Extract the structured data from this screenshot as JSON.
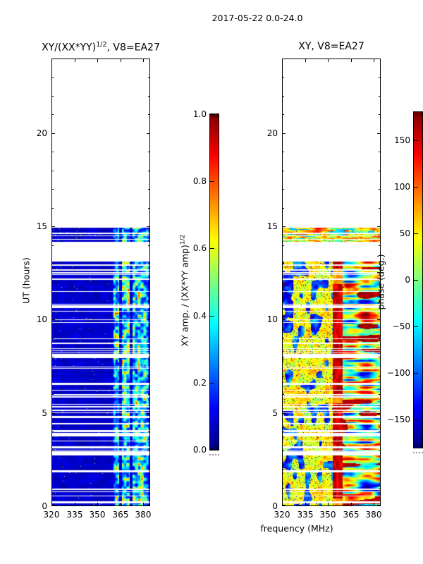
{
  "figure": {
    "title": "2017-05-22 0.0-24.0",
    "background": "#ffffff",
    "frame_color": "#000000"
  },
  "chart_data": [
    {
      "type": "heatmap",
      "panel": "left",
      "title_pre": "XY/(XX*YY)",
      "title_sup": "1/2",
      "title_post": ", V8=EA27",
      "ylabel": "UT (hours)",
      "xlabel": "frequency (MHz)",
      "xlim": [
        320,
        384.6
      ],
      "ylim": [
        0,
        24
      ],
      "xticks": [
        "320",
        "335",
        "350",
        "365",
        "380"
      ],
      "xtick_values": [
        320,
        335,
        350,
        365,
        380
      ],
      "yticks": [
        "0",
        "5",
        "10",
        "15",
        "20"
      ],
      "ytick_values": [
        0,
        5,
        10,
        15,
        20
      ],
      "grid": false,
      "colormap": "jet",
      "colorbar": {
        "label_pre": "XY amp. / (XX*YY amp)",
        "label_sup": "1/2",
        "range": [
          0.0,
          1.0
        ],
        "tick_labels": [
          "1.0",
          "0.8",
          "0.6",
          "0.4",
          "0.2",
          "0.0"
        ],
        "tick_values": [
          1.0,
          0.8,
          0.6,
          0.4,
          0.2,
          0.0
        ]
      },
      "data_summary": {
        "time_blocks_hours": [
          [
            0,
            13.1
          ],
          [
            14.17,
            14.93
          ]
        ],
        "blank_hours": [
          [
            13.1,
            14.17
          ],
          [
            14.93,
            24
          ]
        ],
        "background_amplitude": 0.05,
        "enhanced_band_mhz": [
          359.5,
          383
        ],
        "enhanced_amplitude_range": [
          0.2,
          0.9
        ],
        "notch_lines_mhz": [
          364.9,
          371.9
        ],
        "row_dropout_gaps": "many 1-3 px white horizontal gaps throughout, thicker gaps near 2.9h, 3.9h, 8.15h"
      }
    },
    {
      "type": "heatmap",
      "panel": "right",
      "title": "XY, V8=EA27",
      "xlabel": "frequency (MHz)",
      "xlim": [
        320,
        384.6
      ],
      "ylim": [
        0,
        24
      ],
      "xticks": [
        "320",
        "335",
        "350",
        "365",
        "380"
      ],
      "xtick_values": [
        320,
        335,
        350,
        365,
        380
      ],
      "yticks": [
        "0",
        "5",
        "10",
        "15",
        "20"
      ],
      "ytick_values": [
        0,
        5,
        10,
        15,
        20
      ],
      "grid": false,
      "colormap": "jet",
      "colorbar": {
        "label": "phase (deg.)",
        "range": [
          -180,
          180
        ],
        "tick_labels": [
          "150",
          "100",
          "50",
          "0",
          "−50",
          "−100",
          "−150"
        ],
        "tick_values": [
          150,
          100,
          50,
          0,
          -50,
          -100,
          -150
        ]
      },
      "data_summary": {
        "time_blocks_hours": [
          [
            0,
            13.1
          ],
          [
            14.17,
            14.93
          ]
        ],
        "blank_hours": [
          [
            13.1,
            14.17
          ],
          [
            14.93,
            24
          ]
        ],
        "base_phase_deg": 45,
        "red_phase_strip_mhz": [
          353,
          359.5
        ],
        "streaky_region_mhz": [
          359.5,
          383
        ],
        "blue_patches": "scattered negative-phase (blue) patches, strongest near left edge at 9.3-12.7h",
        "row_dropout_gaps": "same white gap rows as left panel"
      }
    }
  ]
}
